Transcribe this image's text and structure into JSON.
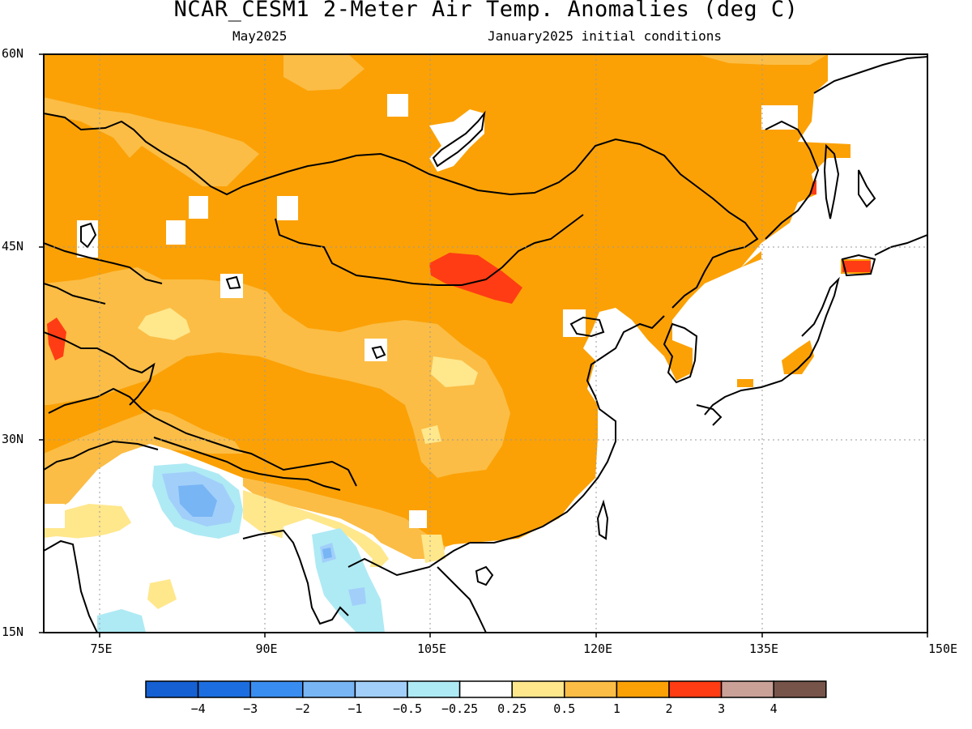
{
  "title": "NCAR_CESM1 2-Meter Air Temp. Anomalies (deg C)",
  "subtitle_left": "May2025",
  "subtitle_right": "January2025 initial conditions",
  "lat_ticks": [
    "60N",
    "45N",
    "30N",
    "15N"
  ],
  "lon_ticks": [
    "75E",
    "90E",
    "105E",
    "120E",
    "135E",
    "150E"
  ],
  "colorbar": {
    "colors": [
      "#1560d2",
      "#1c6ee0",
      "#3a8df0",
      "#78b5f5",
      "#a2cffa",
      "#aeeaf4",
      "#ffffff",
      "#ffe78c",
      "#fbbd45",
      "#fba106",
      "#ff3c14",
      "#caa197",
      "#77544a"
    ],
    "labels": [
      "−4",
      "−3",
      "−2",
      "−1",
      "−0.5",
      "−0.25",
      "0.25",
      "0.5",
      "1",
      "2",
      "3",
      "4"
    ]
  }
}
